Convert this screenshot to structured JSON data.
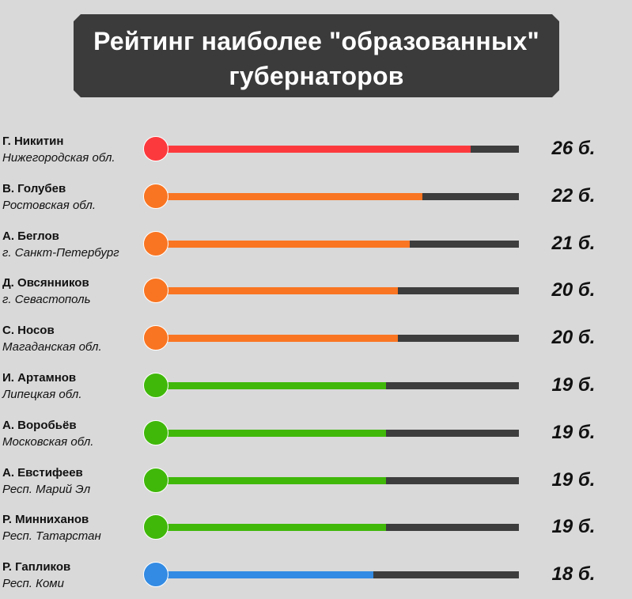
{
  "header": {
    "title_line1": "Рейтинг наиболее \"образованных\"",
    "title_line2": "губернаторов"
  },
  "colors": {
    "background": "#d9d9d9",
    "banner": "#3b3b3b",
    "track": "#3d3d3d",
    "red": "#fc3a3e",
    "orange": "#f97522",
    "green": "#40b80a",
    "blue": "#338be3"
  },
  "chart_data": {
    "type": "bar",
    "orientation": "horizontal",
    "max": 30,
    "rows": [
      {
        "name": "Г. Никитин",
        "region": "Нижегородская обл.",
        "value": 26,
        "label": "26 б.",
        "color": "red"
      },
      {
        "name": "В. Голубев",
        "region": "Ростовская обл.",
        "value": 22,
        "label": "22 б.",
        "color": "orange"
      },
      {
        "name": "А. Беглов",
        "region": "г. Санкт-Петербург",
        "value": 21,
        "label": "21 б.",
        "color": "orange"
      },
      {
        "name": "Д. Овсянников",
        "region": "г. Севастополь",
        "value": 20,
        "label": "20 б.",
        "color": "orange"
      },
      {
        "name": "С. Носов",
        "region": "Магаданская обл.",
        "value": 20,
        "label": "20 б.",
        "color": "orange"
      },
      {
        "name": "И. Артамнов",
        "region": "Липецкая обл.",
        "value": 19,
        "label": "19 б.",
        "color": "green"
      },
      {
        "name": "А. Воробьёв",
        "region": "Московская обл.",
        "value": 19,
        "label": "19 б.",
        "color": "green"
      },
      {
        "name": "А. Евстифеев",
        "region": "Респ. Марий Эл",
        "value": 19,
        "label": "19 б.",
        "color": "green"
      },
      {
        "name": "Р. Минниханов",
        "region": "Респ. Татарстан",
        "value": 19,
        "label": "19 б.",
        "color": "green"
      },
      {
        "name": "Р. Гапликов",
        "region": "Респ. Коми",
        "value": 18,
        "label": "18 б.",
        "color": "blue"
      }
    ]
  }
}
